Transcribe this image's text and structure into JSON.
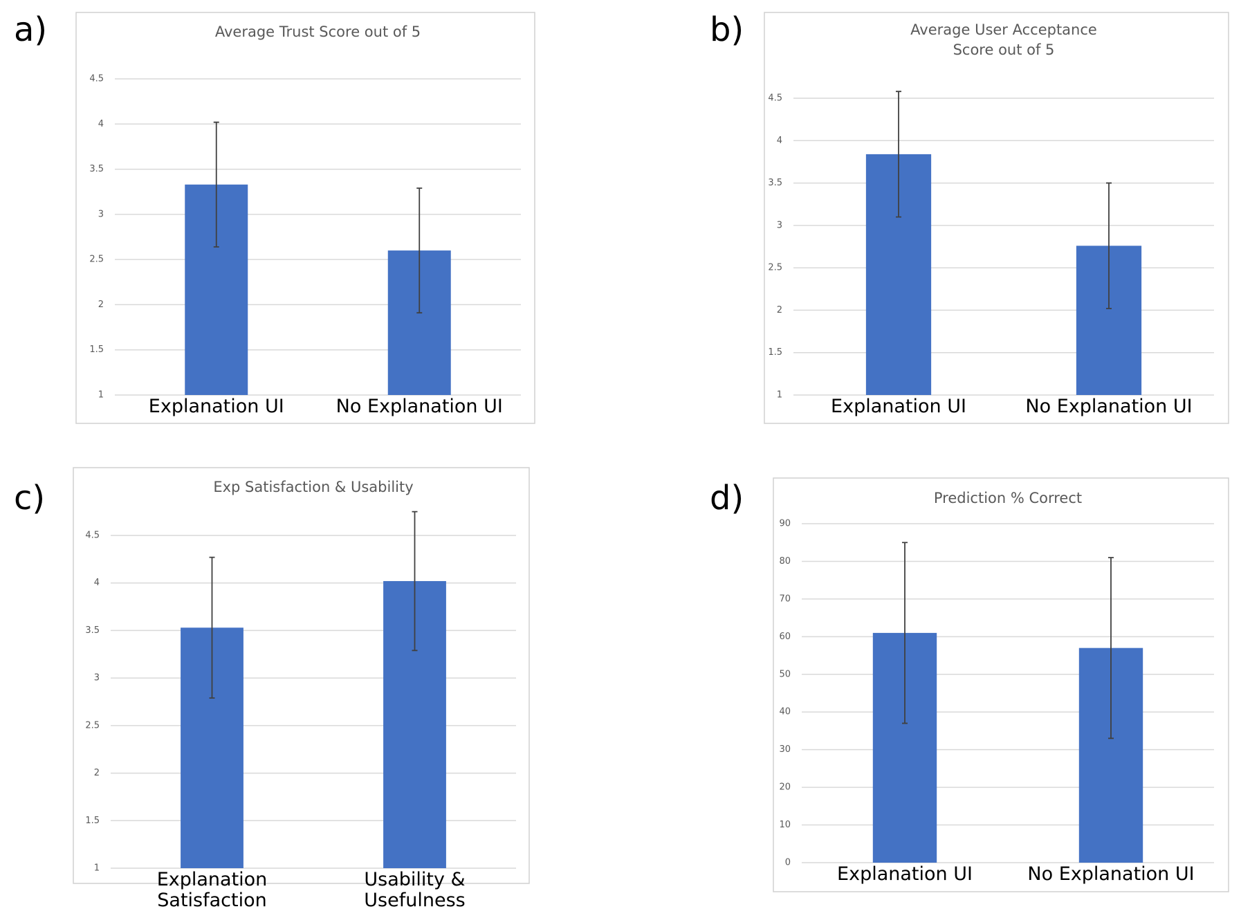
{
  "chart_data": [
    {
      "type": "bar",
      "panel_label": "a)",
      "title": "Average Trust Score out of 5",
      "categories": [
        "Explanation UI",
        "No Explanation UI"
      ],
      "values": [
        3.33,
        2.6
      ],
      "errors": [
        0.69,
        0.69
      ],
      "color": "#4472c4",
      "ylim": [
        1,
        4.5
      ],
      "yticks": [
        1,
        1.5,
        2,
        2.5,
        3,
        3.5,
        4,
        4.5
      ],
      "grid": true
    },
    {
      "type": "bar",
      "panel_label": "b)",
      "title": "Average User Acceptance Score out of 5",
      "categories": [
        "Explanation UI",
        "No Explanation UI"
      ],
      "values": [
        3.84,
        2.76
      ],
      "errors": [
        0.74,
        0.74
      ],
      "color": "#4472c4",
      "ylim": [
        1,
        4.5
      ],
      "yticks": [
        1,
        1.5,
        2,
        2.5,
        3,
        3.5,
        4,
        4.5
      ],
      "grid": true
    },
    {
      "type": "bar",
      "panel_label": "c)",
      "title": "Exp Satisfaction & Usability",
      "categories": [
        "Explanation Satisfaction",
        "Usability & Usefulness"
      ],
      "values": [
        3.53,
        4.02
      ],
      "errors": [
        0.74,
        0.73
      ],
      "color": "#4472c4",
      "ylim": [
        1,
        4.5
      ],
      "yticks": [
        1,
        1.5,
        2,
        2.5,
        3,
        3.5,
        4,
        4.5
      ],
      "grid": true
    },
    {
      "type": "bar",
      "panel_label": "d)",
      "title": "Prediction % Correct",
      "categories": [
        "Explanation UI",
        "No Explanation UI"
      ],
      "values": [
        61,
        57
      ],
      "errors": [
        24,
        24
      ],
      "color": "#4472c4",
      "ylim": [
        0,
        90
      ],
      "yticks": [
        0,
        10,
        20,
        30,
        40,
        50,
        60,
        70,
        80,
        90
      ],
      "grid": true
    }
  ]
}
